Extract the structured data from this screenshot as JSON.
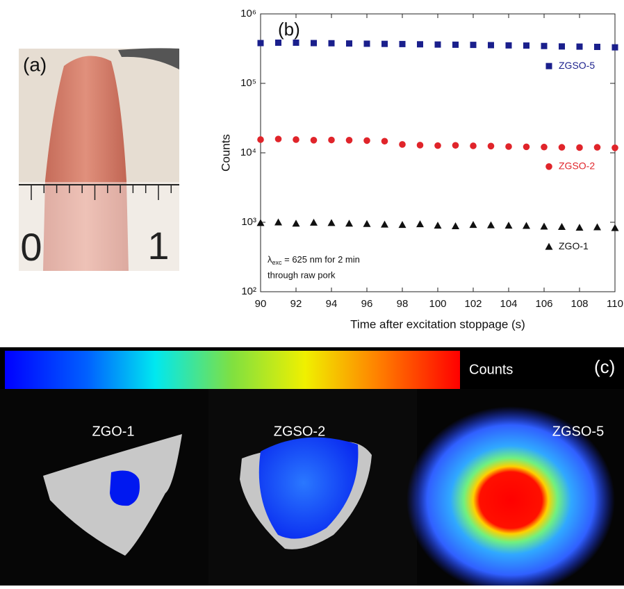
{
  "panel_a": {
    "label": "(a)",
    "ruler_labels": [
      "0",
      "1"
    ]
  },
  "chart_data": {
    "type": "scatter",
    "label": "(b)",
    "x_label": "Time after excitation stoppage (s)",
    "y_label": "Counts",
    "x": [
      90,
      91,
      92,
      93,
      94,
      95,
      96,
      97,
      98,
      99,
      100,
      101,
      102,
      103,
      104,
      105,
      106,
      107,
      108,
      109,
      110
    ],
    "series": [
      {
        "name": "ZGSO-5",
        "color": "#1a1f8c",
        "marker": "square",
        "values": [
          380000,
          385000,
          385000,
          380000,
          378000,
          375000,
          372000,
          370000,
          368000,
          365000,
          362000,
          360000,
          358000,
          355000,
          352000,
          350000,
          345000,
          340000,
          338000,
          335000,
          330000
        ]
      },
      {
        "name": "ZGSO-2",
        "color": "#e0242a",
        "marker": "circle",
        "values": [
          15500,
          15800,
          15500,
          15200,
          15300,
          15200,
          15000,
          14700,
          13200,
          12900,
          12700,
          12800,
          12600,
          12500,
          12300,
          12200,
          12100,
          12000,
          11900,
          12000,
          11800
        ]
      },
      {
        "name": "ZGO-1",
        "color": "#111111",
        "marker": "triangle",
        "values": [
          980,
          1000,
          960,
          990,
          980,
          960,
          950,
          930,
          920,
          940,
          900,
          880,
          920,
          910,
          900,
          890,
          870,
          860,
          840,
          850,
          830
        ]
      }
    ],
    "xlim": [
      90,
      110
    ],
    "xticks": [
      90,
      92,
      94,
      96,
      98,
      100,
      102,
      104,
      106,
      108,
      110
    ],
    "ylim": [
      100,
      1000000
    ],
    "log_y": true,
    "yticks": [
      {
        "value": 100,
        "label": "10²"
      },
      {
        "value": 1000,
        "label": "10³"
      },
      {
        "value": 10000,
        "label": "10⁴"
      },
      {
        "value": 100000,
        "label": "10⁵"
      },
      {
        "value": 1000000,
        "label": "10⁶"
      }
    ],
    "annotation": {
      "symbol": "λ",
      "subscript": "exc",
      "text": " = 625 nm for 2 min",
      "line2": "through raw pork"
    }
  },
  "panel_c": {
    "label": "(c)",
    "colorbar_label": "Counts",
    "samples": [
      "ZGO-1",
      "ZGSO-2",
      "ZGSO-5"
    ]
  }
}
